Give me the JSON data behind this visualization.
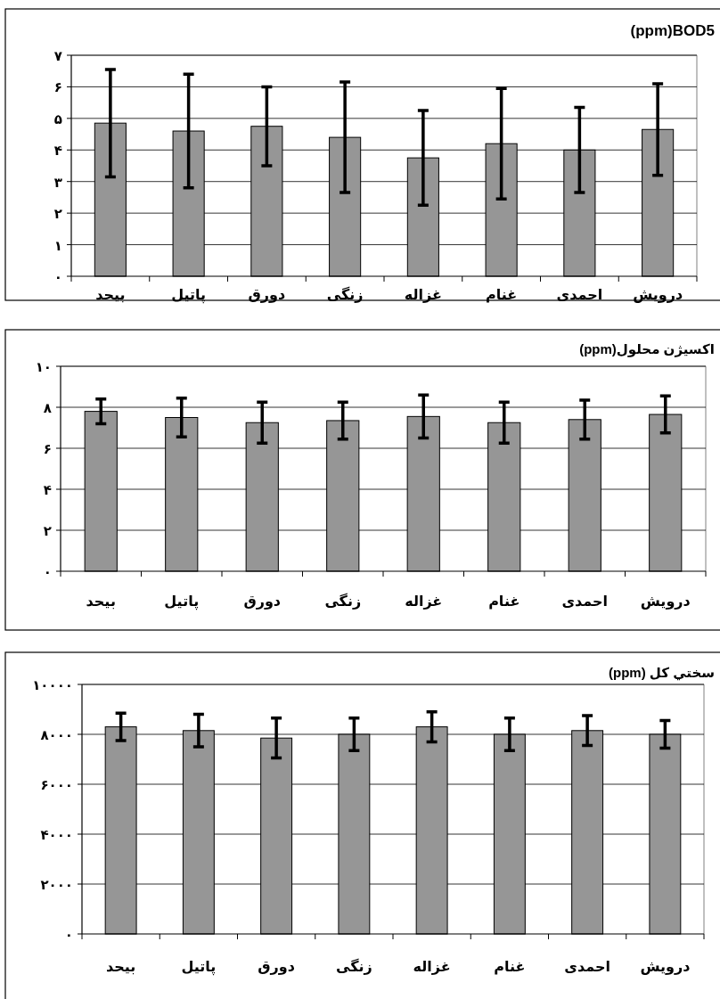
{
  "chart_data": [
    {
      "type": "bar",
      "title": "(ppm)BOD5",
      "categories": [
        "بيحد",
        "پاتيل",
        "دورق",
        "زنگی",
        "غزاله",
        "غنام",
        "احمدی",
        "درویش"
      ],
      "values": [
        4.85,
        4.6,
        4.75,
        4.4,
        3.75,
        4.2,
        4.0,
        4.65
      ],
      "errors": [
        1.7,
        1.8,
        1.25,
        1.75,
        1.5,
        1.75,
        1.35,
        1.45
      ],
      "color": "#969696",
      "ylim": [
        0,
        7
      ],
      "yticks": [
        {
          "value": 0,
          "label": "۰"
        },
        {
          "value": 1,
          "label": "۱"
        },
        {
          "value": 2,
          "label": "۲"
        },
        {
          "value": 3,
          "label": "۳"
        },
        {
          "value": 4,
          "label": "۴"
        },
        {
          "value": 5,
          "label": "۵"
        },
        {
          "value": 6,
          "label": "۶"
        },
        {
          "value": 7,
          "label": "۷"
        }
      ],
      "grid": "y"
    },
    {
      "type": "bar",
      "title": "اکسیژن محلول(ppm)",
      "categories": [
        "بيحد",
        "پاتيل",
        "دورق",
        "زنگی",
        "غزاله",
        "غنام",
        "احمدی",
        "درویش"
      ],
      "values": [
        7.8,
        7.5,
        7.25,
        7.35,
        7.55,
        7.25,
        7.4,
        7.65
      ],
      "errors": [
        0.6,
        0.95,
        1.0,
        0.9,
        1.05,
        1.0,
        0.95,
        0.9
      ],
      "color": "#969696",
      "ylim": [
        0,
        10
      ],
      "yticks": [
        {
          "value": 0,
          "label": "۰"
        },
        {
          "value": 2,
          "label": "۲"
        },
        {
          "value": 4,
          "label": "۴"
        },
        {
          "value": 6,
          "label": "۶"
        },
        {
          "value": 8,
          "label": "۸"
        },
        {
          "value": 10,
          "label": "۱۰"
        }
      ],
      "grid": "y"
    },
    {
      "type": "bar",
      "title": "سختي كل (ppm)",
      "categories": [
        "بيحد",
        "پاتيل",
        "دورق",
        "زنگی",
        "غزاله",
        "غنام",
        "احمدی",
        "درویش"
      ],
      "values": [
        8300,
        8150,
        7850,
        8000,
        8300,
        8000,
        8150,
        8000
      ],
      "errors": [
        550,
        650,
        800,
        650,
        600,
        650,
        600,
        550
      ],
      "color": "#969696",
      "ylim": [
        0,
        10000
      ],
      "yticks": [
        {
          "value": 0,
          "label": "۰"
        },
        {
          "value": 2000,
          "label": "۲۰۰۰"
        },
        {
          "value": 4000,
          "label": "۴۰۰۰"
        },
        {
          "value": 6000,
          "label": "۶۰۰۰"
        },
        {
          "value": 8000,
          "label": "۸۰۰۰"
        },
        {
          "value": 10000,
          "label": "۱۰۰۰۰"
        }
      ],
      "grid": "y"
    }
  ]
}
